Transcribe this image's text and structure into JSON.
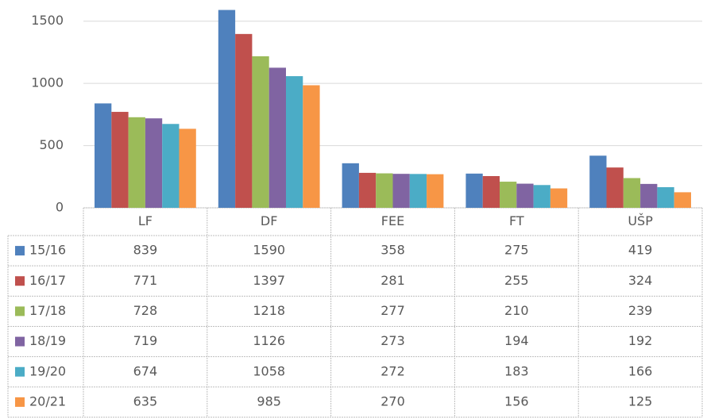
{
  "chart_data": {
    "type": "bar",
    "categories": [
      "LF",
      "DF",
      "FEE",
      "FT",
      "UŠP"
    ],
    "series": [
      {
        "name": "15/16",
        "color": "#4f81bd",
        "values": [
          839,
          1590,
          358,
          275,
          419
        ]
      },
      {
        "name": "16/17",
        "color": "#c0504d",
        "values": [
          771,
          1397,
          281,
          255,
          324
        ]
      },
      {
        "name": "17/18",
        "color": "#9bbb59",
        "values": [
          728,
          1218,
          277,
          210,
          239
        ]
      },
      {
        "name": "18/19",
        "color": "#8064a2",
        "values": [
          719,
          1126,
          273,
          194,
          192
        ]
      },
      {
        "name": "19/20",
        "color": "#4bacc6",
        "values": [
          674,
          1058,
          272,
          183,
          166
        ]
      },
      {
        "name": "20/21",
        "color": "#f79646",
        "values": [
          635,
          985,
          270,
          156,
          125
        ]
      }
    ],
    "ylim": [
      0,
      1600
    ],
    "yticks": [
      0,
      500,
      1000,
      1500
    ],
    "grid": true
  }
}
